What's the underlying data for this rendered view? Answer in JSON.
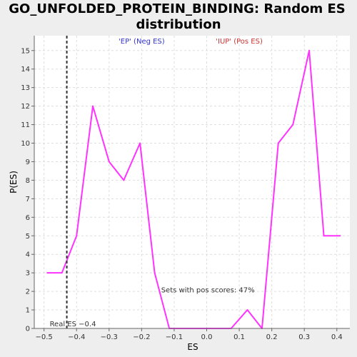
{
  "chart_data": {
    "type": "line",
    "title_line1": "GO_UNFOLDED_PROTEIN_BINDING: Random ES",
    "title_line2": "distribution",
    "xlabel": "ES",
    "ylabel": "P(ES)",
    "xlim": [
      -0.53,
      0.44
    ],
    "ylim": [
      0,
      15.8
    ],
    "x_ticks": [
      -0.5,
      -0.4,
      -0.3,
      -0.2,
      -0.1,
      0.0,
      0.1,
      0.2,
      0.3,
      0.4
    ],
    "x_tick_labels": [
      "−0.5",
      "−0.4",
      "−0.3",
      "−0.2",
      "−0.1",
      "0.0",
      "0.1",
      "0.2",
      "0.3",
      "0.4"
    ],
    "y_ticks": [
      0,
      1,
      2,
      3,
      4,
      5,
      6,
      7,
      8,
      9,
      10,
      11,
      12,
      13,
      14,
      15
    ],
    "grid": true,
    "series": [
      {
        "color": "#ff33ff",
        "x": [
          -0.49,
          -0.445,
          -0.4,
          -0.35,
          -0.3,
          -0.255,
          -0.205,
          -0.16,
          -0.115,
          -0.065,
          -0.02,
          0.03,
          0.075,
          0.125,
          0.17,
          0.22,
          0.265,
          0.315,
          0.36,
          0.41
        ],
        "y": [
          3,
          3,
          5,
          12,
          9,
          8,
          10,
          3,
          0,
          0,
          0,
          0,
          0,
          1,
          0,
          10,
          11,
          15,
          5,
          5
        ]
      }
    ],
    "real_es": -0.43,
    "real_es_label": "Real ES −0.4",
    "neg_label": "'EP' (Neg ES)",
    "pos_label": "'IUP' (Pos ES)",
    "pos_scores_label": "Sets with pos scores: 47%",
    "colors": {
      "neg": "#3333cc",
      "pos": "#cc3333",
      "grid": "#dddddd"
    }
  }
}
